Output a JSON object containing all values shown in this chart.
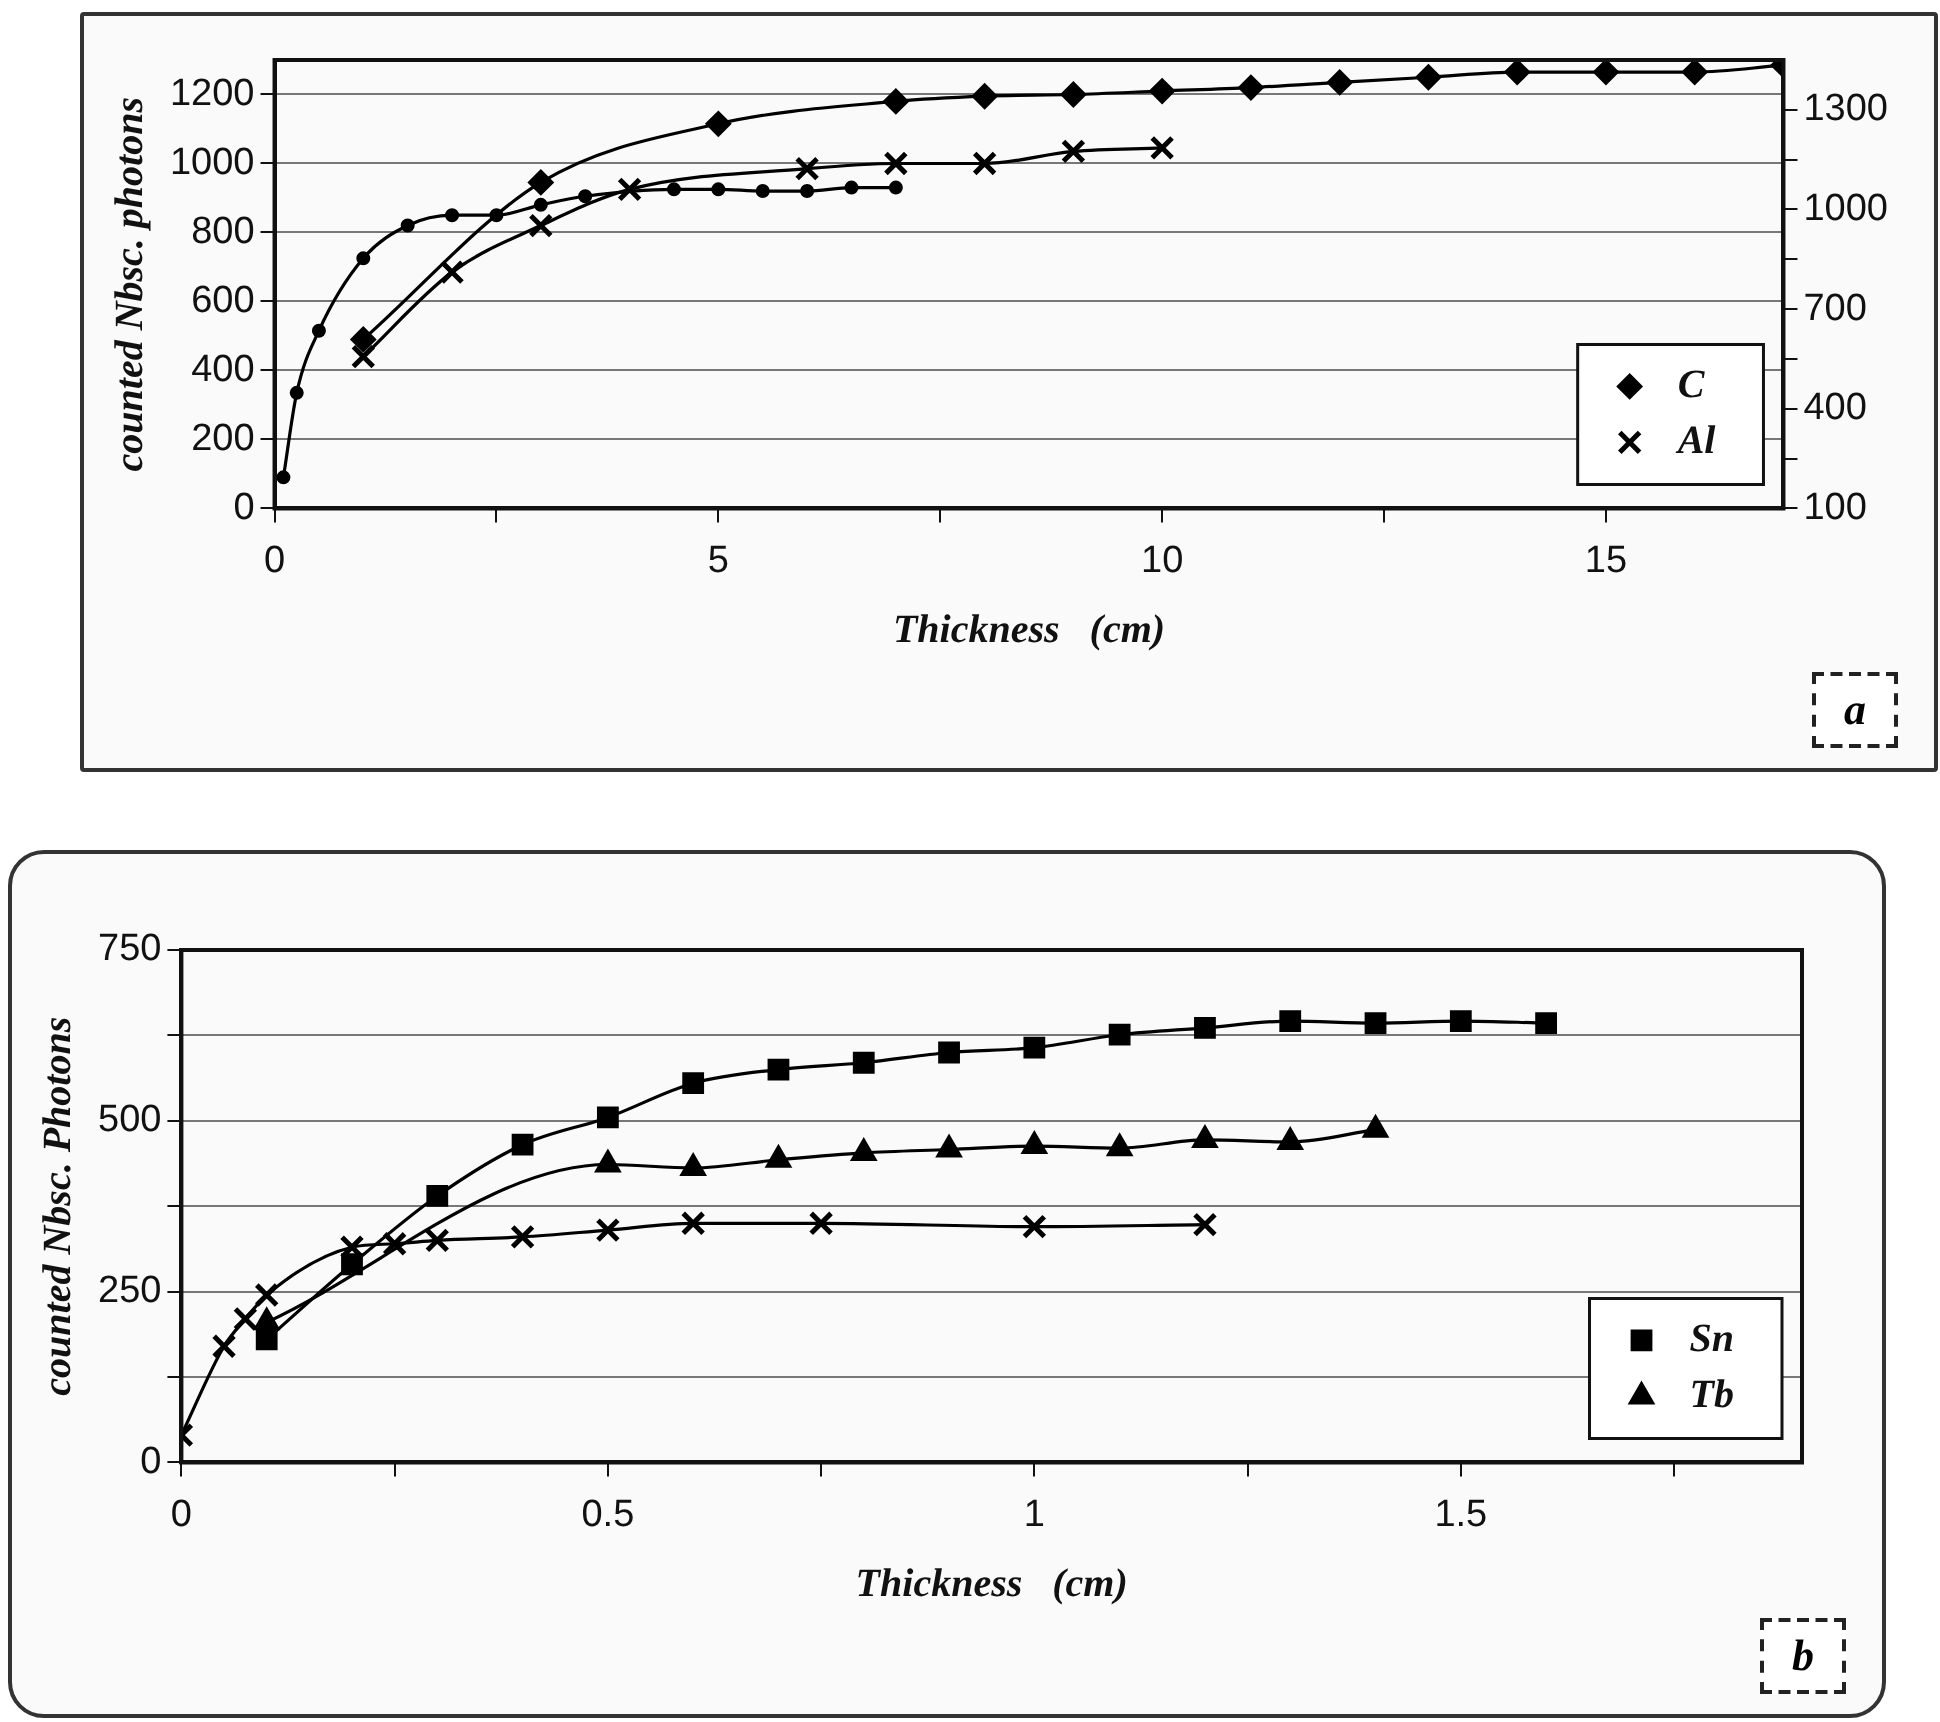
{
  "chart_data": [
    {
      "type": "line",
      "xlabel": "Thickness   (cm)",
      "ylabel": "counted Nbsc. photons",
      "xlim": [
        0,
        17
      ],
      "xticks": [
        0,
        {
          "value": 2.5,
          "label": null
        },
        5,
        {
          "value": 7.5,
          "label": null
        },
        10,
        {
          "value": 12.5,
          "label": null
        },
        15
      ],
      "ylim": [
        0,
        1300
      ],
      "yticks": [
        0,
        200,
        400,
        600,
        800,
        1000,
        1200
      ],
      "y2lim": [
        100,
        1450
      ],
      "y2ticks": [
        100,
        {
          "value": 250,
          "label": null
        },
        400,
        {
          "value": 550,
          "label": null
        },
        700,
        {
          "value": 850,
          "label": null
        },
        1000,
        {
          "value": 1150,
          "label": null
        },
        1300
      ],
      "grid": "y",
      "legend": "bottom right",
      "annotations": [
        "a"
      ],
      "series": [
        {
          "name": "C",
          "color": "#000000",
          "marker": "diamond",
          "x": [
            1,
            3,
            5,
            7,
            8,
            9,
            10,
            11,
            12,
            13,
            14,
            15,
            16,
            17
          ],
          "values": [
            490,
            945,
            1115,
            1180,
            1195,
            1200,
            1210,
            1220,
            1235,
            1250,
            1265,
            1265,
            1265,
            1285
          ]
        },
        {
          "name": "Al",
          "color": "#000000",
          "marker": "cross",
          "x": [
            1,
            2,
            3,
            4,
            6,
            7,
            8,
            9,
            10
          ],
          "values": [
            440,
            685,
            820,
            925,
            985,
            1000,
            1000,
            1035,
            1045
          ]
        },
        {
          "color": "#000000",
          "marker": "circle",
          "x": [
            0.1,
            0.25,
            0.5,
            1,
            1.5,
            2,
            2.5,
            3,
            3.5,
            4,
            4.5,
            5,
            5.5,
            6,
            6.5,
            7
          ],
          "values": [
            90,
            335,
            515,
            725,
            820,
            850,
            850,
            880,
            905,
            null,
            925,
            925,
            920,
            920,
            930,
            930
          ]
        }
      ]
    },
    {
      "type": "line",
      "xlabel": "Thickness   (cm)",
      "ylabel": "counted Nbsc. Photons",
      "xlim": [
        0,
        1.9
      ],
      "xticks": [
        0,
        {
          "value": 0.25,
          "label": null
        },
        0.5,
        {
          "value": 0.75,
          "label": null
        },
        1,
        {
          "value": 1.25,
          "label": null
        },
        1.5,
        {
          "value": 1.75,
          "label": null
        }
      ],
      "ylim": [
        0,
        750
      ],
      "yticks": [
        0,
        {
          "value": 125,
          "label": null
        },
        250,
        {
          "value": 375,
          "label": null
        },
        500,
        {
          "value": 625,
          "label": null
        },
        750
      ],
      "grid": "y",
      "legend": "bottom right",
      "annotations": [
        "b"
      ],
      "series": [
        {
          "name": "Sn",
          "color": "#000000",
          "marker": "square",
          "x": [
            0.1,
            0.2,
            0.3,
            0.4,
            0.5,
            0.6,
            0.7,
            0.8,
            0.9,
            1,
            1.1,
            1.2,
            1.3,
            1.4,
            1.5,
            1.6
          ],
          "values": [
            180,
            290,
            390,
            465,
            505,
            555,
            575,
            585,
            600,
            607,
            626,
            636,
            646,
            643,
            646,
            643
          ]
        },
        {
          "name": "Tb",
          "color": "#000000",
          "marker": "triangle",
          "x": [
            0.1,
            0.2,
            0.3,
            0.5,
            0.6,
            0.7,
            0.8,
            0.9,
            1,
            1.1,
            1.2,
            1.3,
            1.4
          ],
          "values": [
            205,
            null,
            null,
            436,
            431,
            443,
            453,
            458,
            463,
            460,
            472,
            469,
            487
          ]
        },
        {
          "color": "#000000",
          "marker": "cross",
          "x": [
            0,
            0.05,
            0.075,
            0.1,
            0.2,
            0.25,
            0.3,
            0.4,
            0.5,
            0.6,
            0.75,
            1,
            1.2
          ],
          "values": [
            40,
            170,
            210,
            245,
            315,
            320,
            325,
            330,
            340,
            350,
            350,
            345,
            348
          ]
        }
      ]
    }
  ]
}
